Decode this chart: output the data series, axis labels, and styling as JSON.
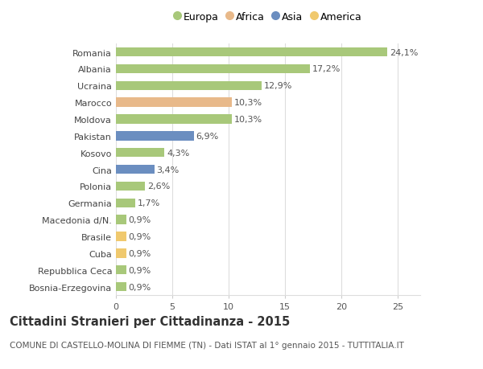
{
  "categories": [
    "Bosnia-Erzegovina",
    "Repubblica Ceca",
    "Cuba",
    "Brasile",
    "Macedonia d/N.",
    "Germania",
    "Polonia",
    "Cina",
    "Kosovo",
    "Pakistan",
    "Moldova",
    "Marocco",
    "Ucraina",
    "Albania",
    "Romania"
  ],
  "values": [
    0.9,
    0.9,
    0.9,
    0.9,
    0.9,
    1.7,
    2.6,
    3.4,
    4.3,
    6.9,
    10.3,
    10.3,
    12.9,
    17.2,
    24.1
  ],
  "labels": [
    "0,9%",
    "0,9%",
    "0,9%",
    "0,9%",
    "0,9%",
    "1,7%",
    "2,6%",
    "3,4%",
    "4,3%",
    "6,9%",
    "10,3%",
    "10,3%",
    "12,9%",
    "17,2%",
    "24,1%"
  ],
  "continents": [
    "Europa",
    "Europa",
    "America",
    "America",
    "Europa",
    "Europa",
    "Europa",
    "Asia",
    "Europa",
    "Asia",
    "Europa",
    "Africa",
    "Europa",
    "Europa",
    "Europa"
  ],
  "colors": {
    "Europa": "#a8c87a",
    "Africa": "#e8b98a",
    "Asia": "#6b8ec0",
    "America": "#f0c96e"
  },
  "legend_order": [
    "Europa",
    "Africa",
    "Asia",
    "America"
  ],
  "xlim": [
    0,
    27
  ],
  "xticks": [
    0,
    5,
    10,
    15,
    20,
    25
  ],
  "title": "Cittadini Stranieri per Cittadinanza - 2015",
  "subtitle": "COMUNE DI CASTELLO-MOLINA DI FIEMME (TN) - Dati ISTAT al 1° gennaio 2015 - TUTTITALIA.IT",
  "bg_color": "#ffffff",
  "grid_color": "#dddddd",
  "bar_height": 0.55,
  "label_fontsize": 8,
  "tick_fontsize": 8,
  "title_fontsize": 10.5,
  "subtitle_fontsize": 7.5
}
